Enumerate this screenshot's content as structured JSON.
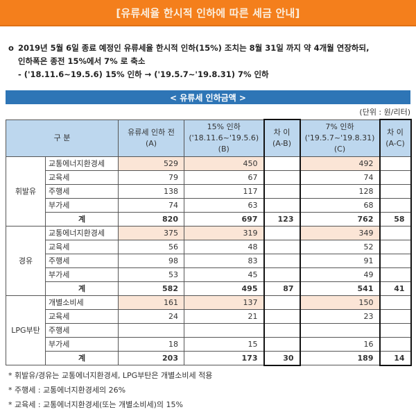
{
  "banner": {
    "title": "[유류세율 한시적 인하에 따른 세금 안내]"
  },
  "intro": {
    "bullet": "o",
    "line1": "2019년 5월 6일 종료 예정인 유류세율 한시적 인하(15%) 조치는 8월 31일 까지 약 4개월 연장하되,",
    "line2": "인하폭은 종전 15%에서 7% 로 축소",
    "line3": "- ('18.11.6~19.5.6) 15% 인하 → ('19.5.7~'19.8.31) 7% 인하"
  },
  "section": {
    "title": "< 유류세 인하금액 >",
    "unit": "(단위 : 원/리터)"
  },
  "table": {
    "headers": {
      "category": "구 분",
      "a_line1": "유류세 인하 전",
      "a_line2": "(A)",
      "b_line1": "15% 인하",
      "b_line2": "('18.11.6~'19.5.6)(B)",
      "ab_line1": "차 이",
      "ab_line2": "(A-B)",
      "c_line1": "7% 인하",
      "c_line2": "('19.5.7~'19.8.31)(C)",
      "ac_line1": "차 이",
      "ac_line2": "(A-C)"
    },
    "groups": [
      {
        "name": "휘발유",
        "rows": [
          {
            "label": "교통에너지환경세",
            "a": "529",
            "b": "450",
            "ab": "",
            "c": "492",
            "ac": "",
            "highlight": true
          },
          {
            "label": "교육세",
            "a": "79",
            "b": "67",
            "ab": "",
            "c": "74",
            "ac": ""
          },
          {
            "label": "주행세",
            "a": "138",
            "b": "117",
            "ab": "",
            "c": "128",
            "ac": ""
          },
          {
            "label": "부가세",
            "a": "74",
            "b": "63",
            "ab": "",
            "c": "68",
            "ac": ""
          }
        ],
        "total": {
          "label": "계",
          "a": "820",
          "b": "697",
          "ab": "123",
          "c": "762",
          "ac": "58"
        }
      },
      {
        "name": "경유",
        "rows": [
          {
            "label": "교통에너지환경세",
            "a": "375",
            "b": "319",
            "ab": "",
            "c": "349",
            "ac": "",
            "highlight": true
          },
          {
            "label": "교육세",
            "a": "56",
            "b": "48",
            "ab": "",
            "c": "52",
            "ac": ""
          },
          {
            "label": "주행세",
            "a": "98",
            "b": "83",
            "ab": "",
            "c": "91",
            "ac": ""
          },
          {
            "label": "부가세",
            "a": "53",
            "b": "45",
            "ab": "",
            "c": "49",
            "ac": ""
          }
        ],
        "total": {
          "label": "계",
          "a": "582",
          "b": "495",
          "ab": "87",
          "c": "541",
          "ac": "41"
        }
      },
      {
        "name": "LPG부탄",
        "rows": [
          {
            "label": "개별소비세",
            "a": "161",
            "b": "137",
            "ab": "",
            "c": "150",
            "ac": "",
            "highlight": true
          },
          {
            "label": "교육세",
            "a": "24",
            "b": "21",
            "ab": "",
            "c": "23",
            "ac": ""
          },
          {
            "label": "주행세",
            "a": "",
            "b": "",
            "ab": "",
            "c": "",
            "ac": ""
          },
          {
            "label": "부가세",
            "a": "18",
            "b": "15",
            "ab": "",
            "c": "16",
            "ac": ""
          }
        ],
        "total": {
          "label": "계",
          "a": "203",
          "b": "173",
          "ab": "30",
          "c": "189",
          "ac": "14"
        }
      }
    ]
  },
  "notes": [
    "* 휘발유/경유는 교통에너지환경세, LPG부탄은 개별소비세 적용",
    "* 주행세 : 교통에너지환경세의 26%",
    "* 교육세 : 교통에너지환경세(또는 개별소비세)의 15%"
  ],
  "colors": {
    "banner": "#f47f1c",
    "section_bar": "#2e75b6",
    "header_bg": "#bdd7ee",
    "highlight": "#fbe5d6"
  }
}
